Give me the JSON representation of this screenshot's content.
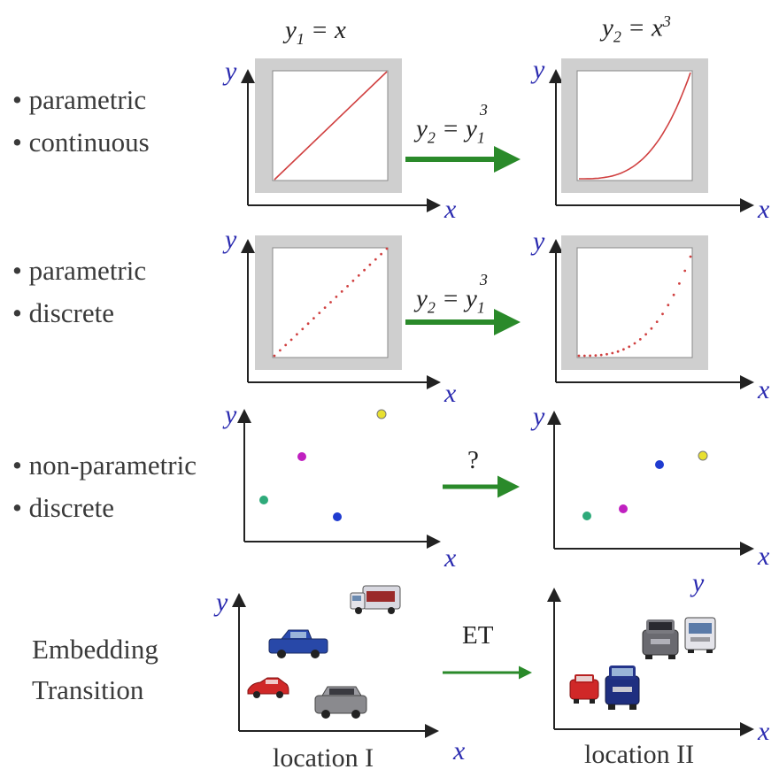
{
  "headers": {
    "left_formula": "y1 = x",
    "right_formula": "y2 = x3"
  },
  "rows": [
    {
      "id": "parametric-continuous",
      "bullets": [
        "• parametric",
        "• continuous"
      ],
      "transition_label": "y2 = y13",
      "mapping": "continuous-line"
    },
    {
      "id": "parametric-discrete",
      "bullets": [
        "• parametric",
        "• discrete"
      ],
      "transition_label": "y2 = y13",
      "mapping": "dotted-line"
    },
    {
      "id": "non-parametric-discrete",
      "bullets": [
        "• non-parametric",
        "• discrete"
      ],
      "transition_label": "?",
      "left_points": [
        {
          "color": "#2eaa7a"
        },
        {
          "color": "#c020c0"
        },
        {
          "color": "#1f3bd0"
        },
        {
          "color": "#e8e030"
        }
      ]
    },
    {
      "id": "embedding-transition",
      "title_lines": [
        "Embedding",
        "Transition"
      ],
      "transition_label": "ET",
      "left_caption": "location I",
      "right_caption": "location II",
      "vehicles": [
        "truck-icon",
        "pickup-icon",
        "car-icon",
        "suv-icon",
        "van-icon"
      ]
    }
  ],
  "axes": {
    "x": "x",
    "y": "y"
  },
  "colors": {
    "curve": "#d04040",
    "arrow": "#2a8a2a",
    "panel": "#cfcfcf",
    "axis": "#222222"
  }
}
